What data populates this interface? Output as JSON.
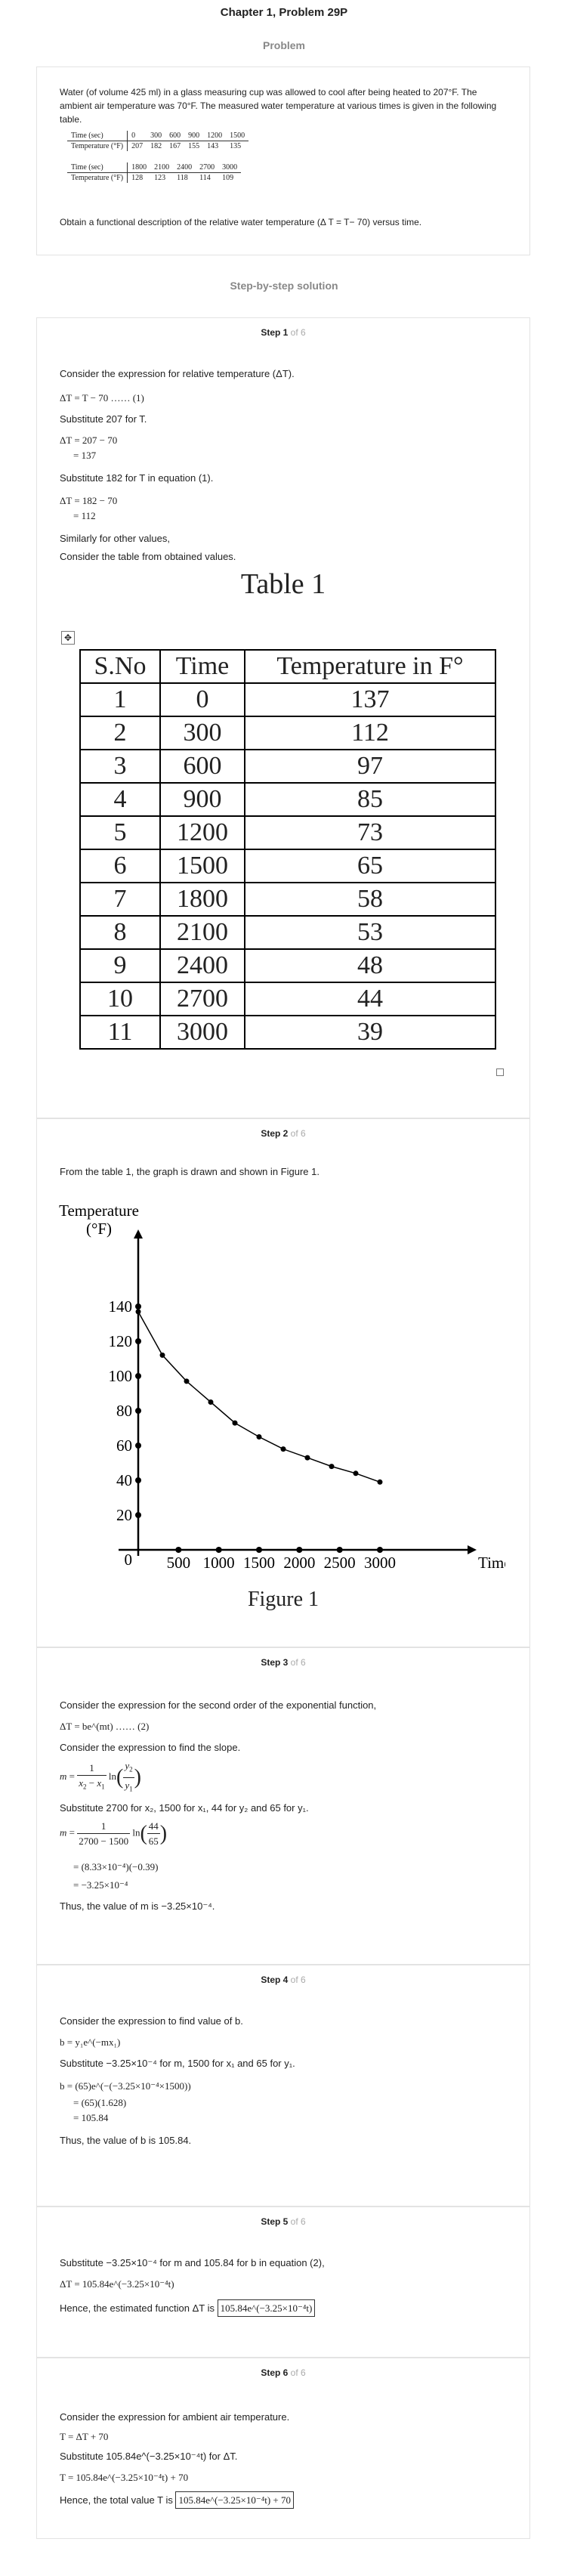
{
  "header": {
    "title": "Chapter 1, Problem 29P",
    "problem_label": "Problem",
    "solution_label": "Step-by-step solution"
  },
  "problem": {
    "text": "Water (of volume 425 ml) in a glass measuring cup was allowed to cool after being heated to 207°F. The ambient air temperature was 70°F. The measured water temperature at various times is given in the following table.",
    "table1": {
      "time_label": "Time (sec)",
      "temp_label": "Temperature (°F)",
      "times": [
        "0",
        "300",
        "600",
        "900",
        "1200",
        "1500"
      ],
      "temps": [
        "207",
        "182",
        "167",
        "155",
        "143",
        "135"
      ]
    },
    "table2": {
      "time_label": "Time (sec)",
      "temp_label": "Temperature (°F)",
      "times": [
        "1800",
        "2100",
        "2400",
        "2700",
        "3000"
      ],
      "temps": [
        "128",
        "123",
        "118",
        "114",
        "109"
      ]
    },
    "question": "Obtain a functional description of the relative water temperature (Δ T = T− 70) versus time."
  },
  "step1": {
    "step": "Step 1",
    "of": "of 6",
    "l1": "Consider the expression for relative temperature (ΔT).",
    "eq1": "ΔT = T − 70 …… (1)",
    "l2": "Substitute 207 for T.",
    "eq2a": "ΔT = 207 − 70",
    "eq2b": "= 137",
    "l3": "Substitute 182 for T in equation (1).",
    "eq3a": "ΔT = 182 − 70",
    "eq3b": "= 112",
    "l4": "Similarly for other values,",
    "l5": "Consider the table from obtained values.",
    "table_title": "Table 1",
    "headers": [
      "S.No",
      "Time",
      "Temperature in  F°"
    ],
    "rows": [
      [
        "1",
        "0",
        "137"
      ],
      [
        "2",
        "300",
        "112"
      ],
      [
        "3",
        "600",
        "97"
      ],
      [
        "4",
        "900",
        "85"
      ],
      [
        "5",
        "1200",
        "73"
      ],
      [
        "6",
        "1500",
        "65"
      ],
      [
        "7",
        "1800",
        "58"
      ],
      [
        "8",
        "2100",
        "53"
      ],
      [
        "9",
        "2400",
        "48"
      ],
      [
        "10",
        "2700",
        "44"
      ],
      [
        "11",
        "3000",
        "39"
      ]
    ]
  },
  "step2": {
    "step": "Step 2",
    "of": "of 6",
    "l1": "From the table 1, the graph is drawn and shown in Figure 1.",
    "figure_caption": "Figure 1"
  },
  "chart_data": {
    "type": "line",
    "ylabel": "Temperature (°F)",
    "xlabel": "Time (sec)",
    "x": [
      0,
      300,
      600,
      900,
      1200,
      1500,
      1800,
      2100,
      2400,
      2700,
      3000
    ],
    "y": [
      137,
      112,
      97,
      85,
      73,
      65,
      58,
      53,
      48,
      44,
      39
    ],
    "xticks": [
      "0",
      "500",
      "1000",
      "1500",
      "2000",
      "2500",
      "3000"
    ],
    "yticks": [
      "20",
      "40",
      "60",
      "80",
      "100",
      "120",
      "140"
    ],
    "xlim": [
      0,
      3300
    ],
    "ylim": [
      0,
      150
    ]
  },
  "step3": {
    "step": "Step 3",
    "of": "of 6",
    "l1": "Consider the expression for the second order of the exponential function,",
    "eq1": "ΔT = be^(mt) …… (2)",
    "l2": "Consider the expression to find the slope.",
    "l3": "Substitute 2700 for x₂, 1500 for x₁, 44 for y₂ and 65 for y₁.",
    "eq_m2": "= (8.33×10⁻⁴)(−0.39)",
    "eq_m3": "= −3.25×10⁻⁴",
    "l4": "Thus, the value of m is −3.25×10⁻⁴."
  },
  "step4": {
    "step": "Step 4",
    "of": "of 6",
    "l1": "Consider the expression to find value of b.",
    "eq1": "b = y₁e^(−mx₁)",
    "l2": "Substitute −3.25×10⁻⁴ for m, 1500 for x₁ and 65 for y₁.",
    "eq2a": "b = (65)e^(−(−3.25×10⁻⁴×1500))",
    "eq2b": "= (65)(1.628)",
    "eq2c": "= 105.84",
    "l3": "Thus, the value of b is 105.84."
  },
  "step5": {
    "step": "Step 5",
    "of": "of 6",
    "l1": "Substitute −3.25×10⁻⁴ for m and 105.84 for b in equation (2),",
    "eq1": "ΔT = 105.84e^(−3.25×10⁻⁴t)",
    "l2": "Hence, the estimated function ΔT is",
    "answer": "105.84e^(−3.25×10⁻⁴t)"
  },
  "step6": {
    "step": "Step 6",
    "of": "of 6",
    "l1": "Consider the expression for ambient air temperature.",
    "eq1": "T = ΔT + 70",
    "l2": "Substitute 105.84e^(−3.25×10⁻⁴t) for ΔT.",
    "eq2": "T = 105.84e^(−3.25×10⁻⁴t) + 70",
    "l3": "Hence, the total value T is",
    "answer": "105.84e^(−3.25×10⁻⁴t) + 70"
  }
}
